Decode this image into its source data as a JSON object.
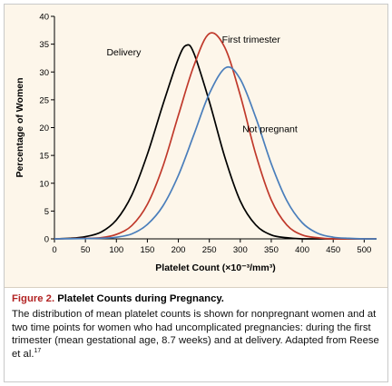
{
  "chart_data": {
    "type": "line",
    "xlabel": "Platelet Count (×10⁻³/mm³)",
    "ylabel": "Percentage of Women",
    "xlim": [
      0,
      520
    ],
    "ylim": [
      0,
      40
    ],
    "xticks": [
      "0",
      "50",
      "100",
      "150",
      "200",
      "250",
      "300",
      "350",
      "400",
      "450",
      "500"
    ],
    "yticks": [
      "0",
      "5",
      "10",
      "15",
      "20",
      "25",
      "30",
      "35",
      "40"
    ],
    "grid": false,
    "legend": "none (curves labeled directly)",
    "series": [
      {
        "name": "Delivery",
        "color": "#000000",
        "x": [
          0,
          25,
          50,
          75,
          100,
          125,
          150,
          175,
          200,
          213,
          225,
          250,
          275,
          300,
          325,
          350,
          375,
          400,
          425,
          450,
          500,
          520
        ],
        "y": [
          0,
          0.1,
          0.4,
          1.2,
          3.4,
          7.9,
          15.2,
          24.1,
          32.4,
          34.8,
          33.4,
          24.7,
          14.7,
          6.8,
          2.5,
          0.7,
          0.2,
          0,
          0,
          0,
          0,
          0
        ]
      },
      {
        "name": "First trimester",
        "color": "#c0392b",
        "x": [
          0,
          50,
          75,
          100,
          125,
          150,
          175,
          200,
          225,
          250,
          275,
          300,
          325,
          350,
          375,
          400,
          425,
          450,
          500,
          520
        ],
        "y": [
          0,
          0.1,
          0.2,
          0.8,
          2.4,
          6.2,
          13.0,
          22.2,
          31.1,
          36.9,
          34.4,
          25.8,
          15.2,
          7.0,
          2.5,
          0.7,
          0.2,
          0,
          0,
          0
        ]
      },
      {
        "name": "Not pregnant",
        "color": "#4a7ebb",
        "x": [
          0,
          75,
          100,
          125,
          150,
          175,
          200,
          225,
          250,
          277,
          300,
          325,
          350,
          375,
          400,
          425,
          450,
          475,
          500,
          520
        ],
        "y": [
          0,
          0.1,
          0.3,
          0.9,
          2.6,
          5.9,
          11.4,
          18.7,
          26.1,
          30.8,
          28.7,
          21.8,
          13.5,
          6.9,
          2.9,
          1.0,
          0.3,
          0.1,
          0,
          0
        ]
      }
    ]
  },
  "caption": {
    "label": "Figure 2.",
    "heading": "Platelet Counts during Pregnancy.",
    "body": "The distribution of mean platelet counts is shown for nonpregnant women and at two time points for women who had uncomplicated pregnancies: during the first trimester (mean gestational age, 8.7 weeks) and at delivery. Adapted from Reese et al.",
    "reference": "17"
  },
  "colors": {
    "plot_background": "#fdf6ea",
    "caption_label": "#b22222"
  }
}
